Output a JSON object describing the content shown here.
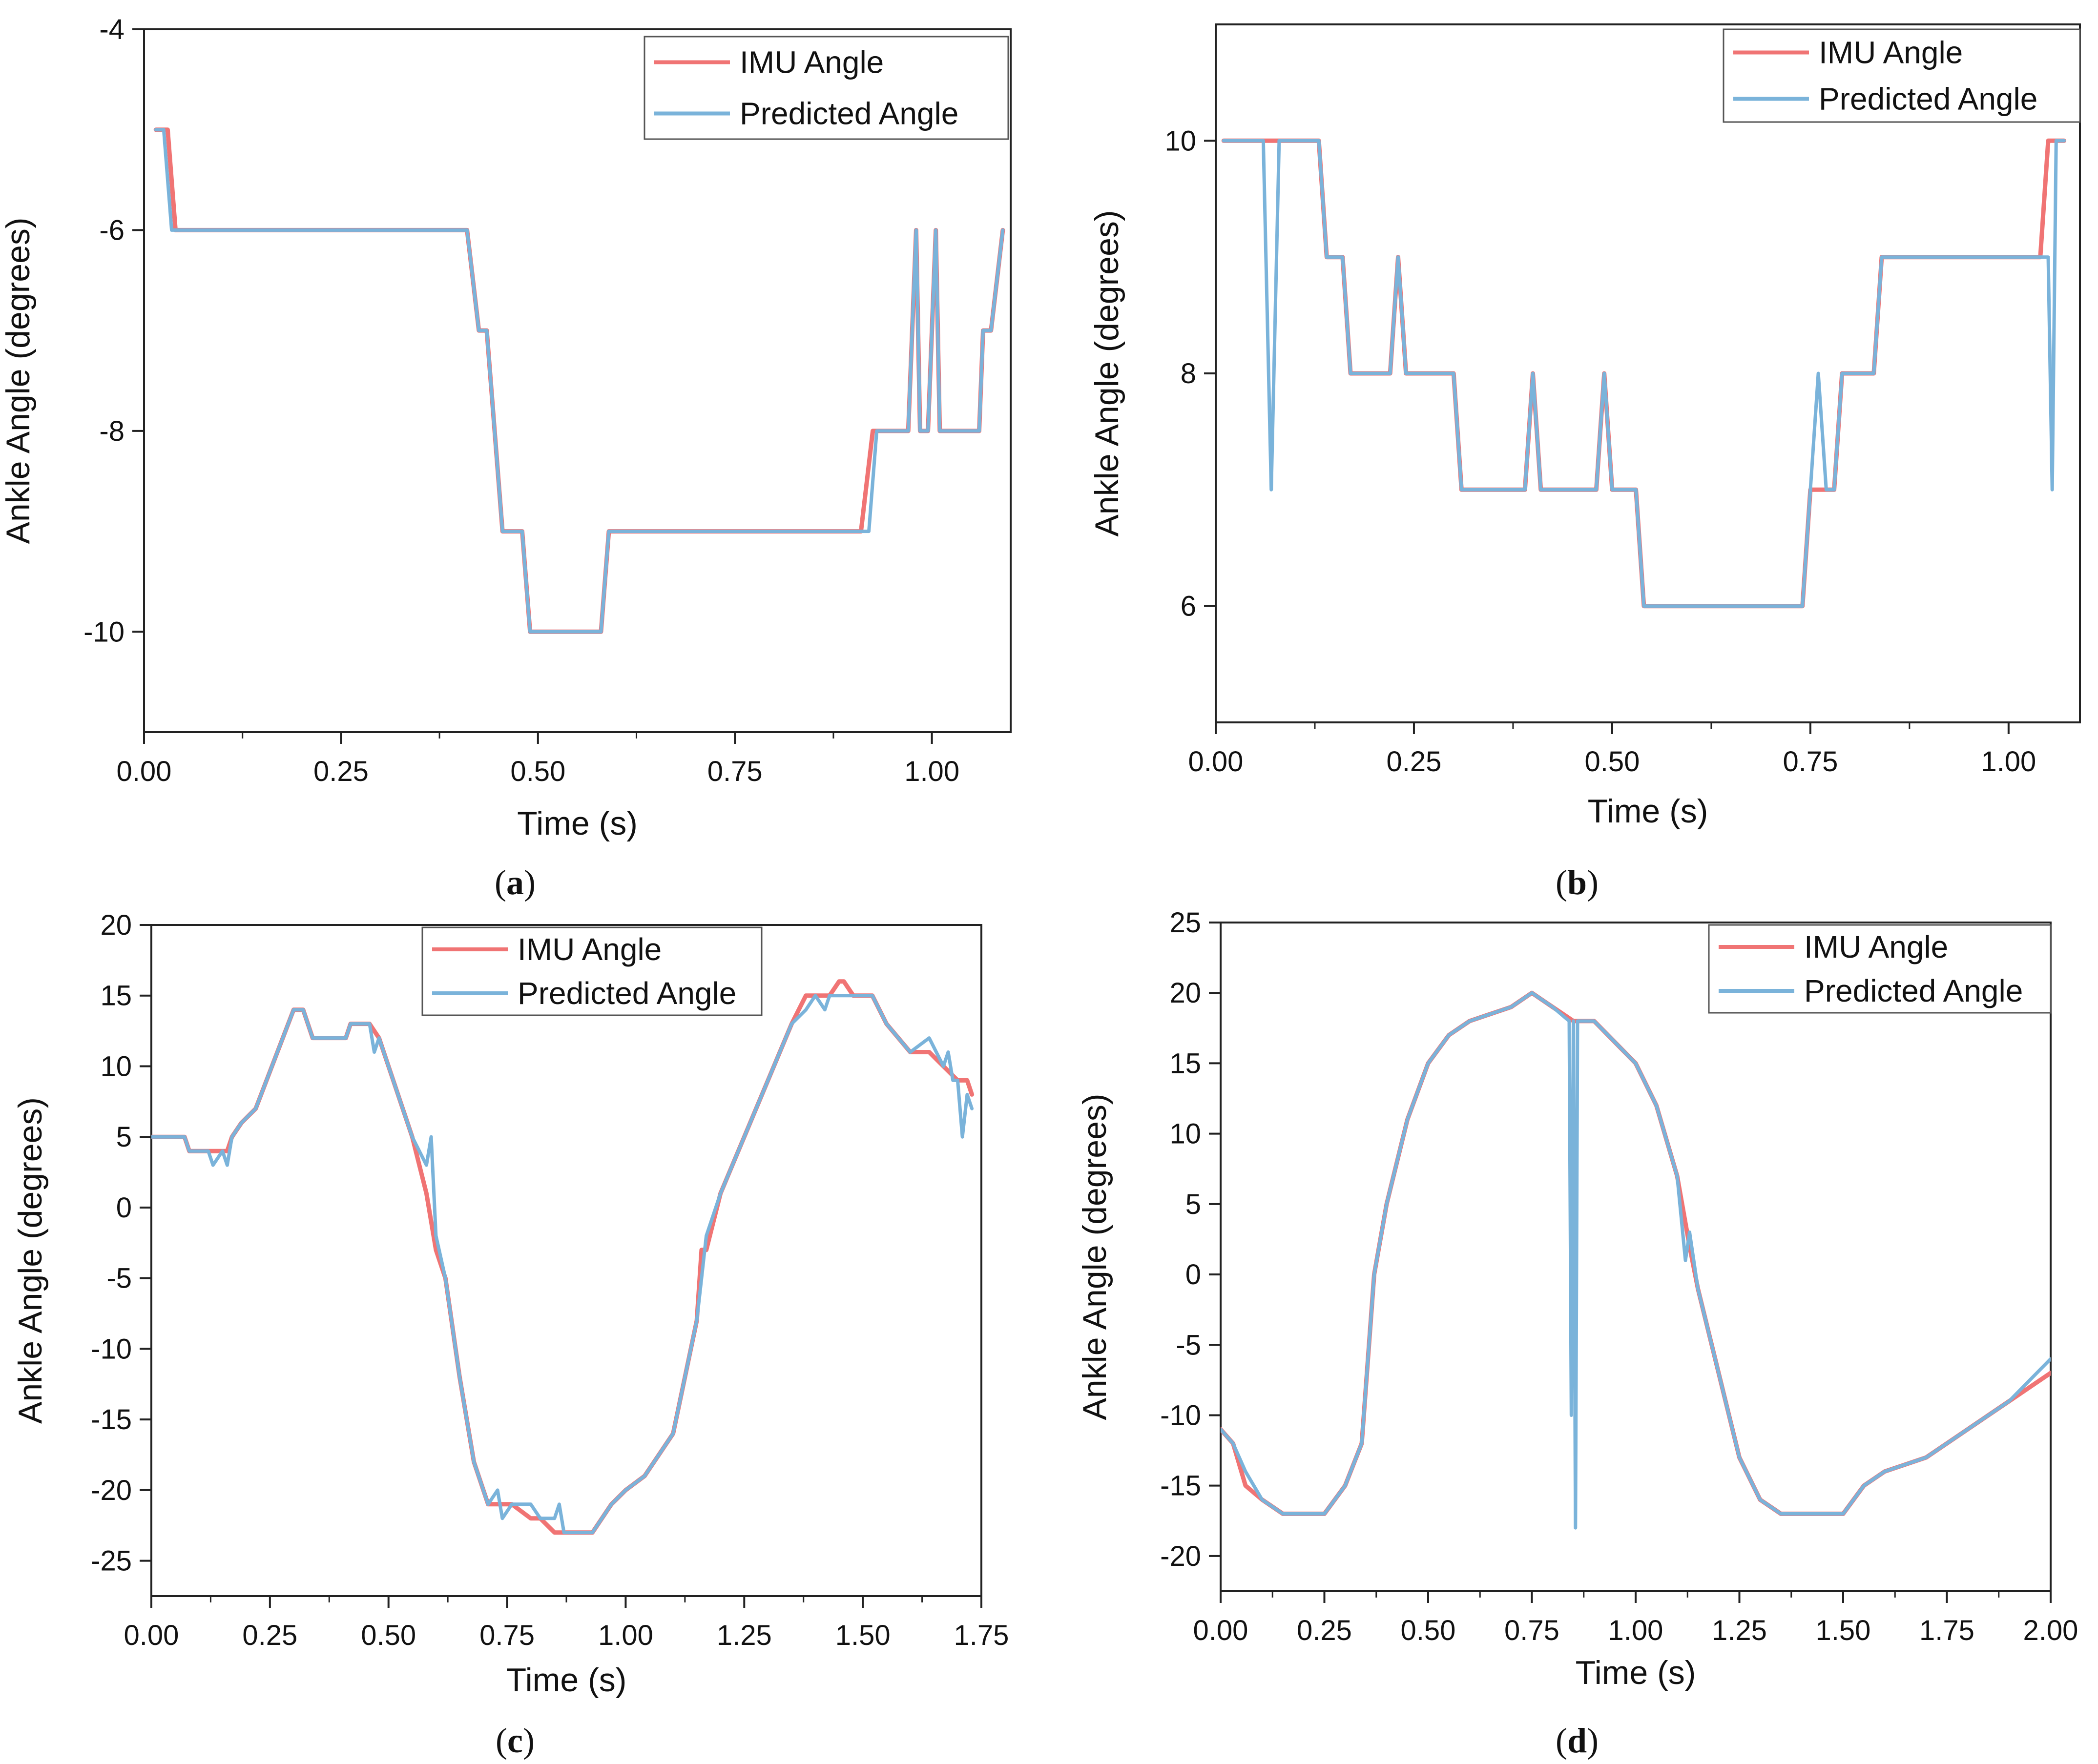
{
  "figure": {
    "legend_labels": [
      "IMU Angle",
      "Predicted Angle"
    ],
    "colors": {
      "imu": "#f07474",
      "predicted": "#7ab3da",
      "axis": "#222222"
    }
  },
  "chart_data": [
    {
      "id": "a",
      "type": "line",
      "caption": "a",
      "xlabel": "Time (s)",
      "ylabel": "Ankle Angle (degrees)",
      "xlim": [
        0,
        1.1
      ],
      "ylim": [
        -11,
        -4
      ],
      "xticks": [
        0,
        0.25,
        0.5,
        0.75,
        1.0
      ],
      "xtick_labels": [
        "0.00",
        "0.25",
        "0.50",
        "0.75",
        "1.00"
      ],
      "yticks": [
        -4,
        -6,
        -8,
        -10
      ],
      "ytick_labels": [
        "-4",
        "-6",
        "-8",
        "-10"
      ],
      "legend_position": "top-right",
      "grid": false,
      "series": [
        {
          "name": "IMU Angle",
          "color": "#f07474",
          "x": [
            0.015,
            0.03,
            0.04,
            0.41,
            0.425,
            0.435,
            0.455,
            0.48,
            0.49,
            0.58,
            0.59,
            0.91,
            0.925,
            0.97,
            0.98,
            0.985,
            0.995,
            1.005,
            1.01,
            1.02,
            1.06,
            1.065,
            1.075,
            1.09
          ],
          "y": [
            -5,
            -5,
            -6,
            -6,
            -7,
            -7,
            -9,
            -9,
            -10,
            -10,
            -9,
            -9,
            -8,
            -8,
            -6,
            -8,
            -8,
            -6,
            -8,
            -8,
            -8,
            -7,
            -7,
            -6
          ]
        },
        {
          "name": "Predicted Angle",
          "color": "#7ab3da",
          "x": [
            0.015,
            0.025,
            0.035,
            0.41,
            0.425,
            0.435,
            0.455,
            0.48,
            0.49,
            0.58,
            0.59,
            0.92,
            0.93,
            0.97,
            0.98,
            0.985,
            0.995,
            1.005,
            1.01,
            1.02,
            1.06,
            1.065,
            1.075,
            1.09
          ],
          "y": [
            -5,
            -5,
            -6,
            -6,
            -7,
            -7,
            -9,
            -9,
            -10,
            -10,
            -9,
            -9,
            -8,
            -8,
            -6,
            -8,
            -8,
            -6,
            -8,
            -8,
            -8,
            -7,
            -7,
            -6
          ]
        }
      ]
    },
    {
      "id": "b",
      "type": "line",
      "caption": "b",
      "xlabel": "Time (s)",
      "ylabel": "Ankle Angle (degrees)",
      "xlim": [
        0,
        1.09
      ],
      "ylim": [
        5,
        11
      ],
      "xticks": [
        0,
        0.25,
        0.5,
        0.75,
        1.0
      ],
      "xtick_labels": [
        "0.00",
        "0.25",
        "0.50",
        "0.75",
        "1.00"
      ],
      "yticks": [
        10,
        8,
        6
      ],
      "ytick_labels": [
        "10",
        "8",
        "6"
      ],
      "legend_position": "top-right",
      "grid": false,
      "series": [
        {
          "name": "IMU Angle",
          "color": "#f07474",
          "x": [
            0.01,
            0.06,
            0.07,
            0.08,
            0.13,
            0.14,
            0.16,
            0.17,
            0.22,
            0.23,
            0.24,
            0.3,
            0.31,
            0.39,
            0.4,
            0.41,
            0.48,
            0.49,
            0.5,
            0.53,
            0.54,
            0.74,
            0.75,
            0.77,
            0.78,
            0.79,
            0.83,
            0.84,
            1.04,
            1.05,
            1.07
          ],
          "y": [
            10,
            10,
            10,
            10,
            10,
            9,
            9,
            8,
            8,
            9,
            8,
            8,
            7,
            7,
            8,
            7,
            7,
            8,
            7,
            7,
            6,
            6,
            7,
            7,
            7,
            8,
            8,
            9,
            9,
            10,
            10
          ]
        },
        {
          "name": "Predicted Angle",
          "color": "#7ab3da",
          "x": [
            0.01,
            0.06,
            0.07,
            0.08,
            0.13,
            0.14,
            0.16,
            0.17,
            0.22,
            0.23,
            0.24,
            0.3,
            0.31,
            0.39,
            0.4,
            0.41,
            0.48,
            0.49,
            0.5,
            0.53,
            0.54,
            0.74,
            0.75,
            0.76,
            0.77,
            0.78,
            0.79,
            0.83,
            0.84,
            1.05,
            1.055,
            1.06,
            1.07
          ],
          "y": [
            10,
            10,
            7,
            10,
            10,
            9,
            9,
            8,
            8,
            9,
            8,
            8,
            7,
            7,
            8,
            7,
            7,
            8,
            7,
            7,
            6,
            6,
            7,
            8,
            7,
            7,
            8,
            8,
            9,
            9,
            7,
            10,
            10
          ]
        }
      ]
    },
    {
      "id": "c",
      "type": "line",
      "caption": "c",
      "xlabel": "Time (s)",
      "ylabel": "Ankle Angle (degrees)",
      "xlim": [
        0,
        1.75
      ],
      "ylim": [
        -27.5,
        20
      ],
      "xticks": [
        0,
        0.25,
        0.5,
        0.75,
        1.0,
        1.25,
        1.5,
        1.75
      ],
      "xtick_labels": [
        "0.00",
        "0.25",
        "0.50",
        "0.75",
        "1.00",
        "1.25",
        "1.50",
        "1.75"
      ],
      "yticks": [
        20,
        15,
        10,
        5,
        0,
        -5,
        -10,
        -15,
        -20,
        -25
      ],
      "ytick_labels": [
        "20",
        "15",
        "10",
        "5",
        "0",
        "-5",
        "-10",
        "-15",
        "-20",
        "-25"
      ],
      "legend_position": "top-center",
      "grid": false,
      "series": [
        {
          "name": "IMU Angle",
          "color": "#f07474",
          "x": [
            0.0,
            0.07,
            0.08,
            0.12,
            0.13,
            0.15,
            0.16,
            0.17,
            0.19,
            0.22,
            0.3,
            0.32,
            0.34,
            0.41,
            0.42,
            0.46,
            0.48,
            0.5,
            0.55,
            0.58,
            0.6,
            0.62,
            0.65,
            0.68,
            0.71,
            0.73,
            0.74,
            0.76,
            0.8,
            0.82,
            0.85,
            0.86,
            0.87,
            0.93,
            0.97,
            1.0,
            1.04,
            1.1,
            1.15,
            1.16,
            1.17,
            1.2,
            1.25,
            1.3,
            1.35,
            1.38,
            1.4,
            1.43,
            1.45,
            1.46,
            1.48,
            1.52,
            1.55,
            1.6,
            1.64,
            1.67,
            1.7,
            1.72,
            1.73
          ],
          "y": [
            5,
            5,
            4,
            4,
            4,
            4,
            4,
            5,
            6,
            7,
            14,
            14,
            12,
            12,
            13,
            13,
            12,
            10,
            5,
            1,
            -3,
            -5,
            -12,
            -18,
            -21,
            -21,
            -21,
            -21,
            -22,
            -22,
            -23,
            -23,
            -23,
            -23,
            -21,
            -20,
            -19,
            -16,
            -8,
            -3,
            -3,
            1,
            5,
            9,
            13,
            15,
            15,
            15,
            16,
            16,
            15,
            15,
            13,
            11,
            11,
            10,
            9,
            9,
            8
          ]
        },
        {
          "name": "Predicted Angle",
          "color": "#7ab3da",
          "x": [
            0.0,
            0.07,
            0.08,
            0.12,
            0.13,
            0.15,
            0.16,
            0.17,
            0.19,
            0.22,
            0.3,
            0.32,
            0.34,
            0.41,
            0.42,
            0.46,
            0.47,
            0.48,
            0.5,
            0.55,
            0.58,
            0.59,
            0.6,
            0.62,
            0.65,
            0.68,
            0.71,
            0.73,
            0.74,
            0.76,
            0.8,
            0.82,
            0.85,
            0.86,
            0.87,
            0.93,
            0.97,
            1.0,
            1.04,
            1.1,
            1.15,
            1.16,
            1.17,
            1.2,
            1.25,
            1.3,
            1.35,
            1.38,
            1.4,
            1.42,
            1.43,
            1.45,
            1.46,
            1.48,
            1.52,
            1.55,
            1.6,
            1.64,
            1.67,
            1.68,
            1.69,
            1.7,
            1.71,
            1.72,
            1.73
          ],
          "y": [
            5,
            5,
            4,
            4,
            3,
            4,
            3,
            5,
            6,
            7,
            14,
            14,
            12,
            12,
            13,
            13,
            11,
            12,
            10,
            5,
            3,
            5,
            -2,
            -5,
            -12,
            -18,
            -21,
            -20,
            -22,
            -21,
            -21,
            -22,
            -22,
            -21,
            -23,
            -23,
            -21,
            -20,
            -19,
            -16,
            -8,
            -5,
            -2,
            1,
            5,
            9,
            13,
            14,
            15,
            14,
            15,
            15,
            15,
            15,
            15,
            13,
            11,
            12,
            10,
            11,
            9,
            9,
            5,
            8,
            7
          ]
        }
      ]
    },
    {
      "id": "d",
      "type": "line",
      "caption": "d",
      "xlabel": "Time (s)",
      "ylabel": "Ankle Angle (degrees)",
      "xlim": [
        0,
        2.0
      ],
      "ylim": [
        -22.5,
        25
      ],
      "xticks": [
        0,
        0.25,
        0.5,
        0.75,
        1.0,
        1.25,
        1.5,
        1.75,
        2.0
      ],
      "xtick_labels": [
        "0.00",
        "0.25",
        "0.50",
        "0.75",
        "1.00",
        "1.25",
        "1.50",
        "1.75",
        "2.00"
      ],
      "yticks": [
        25,
        20,
        15,
        10,
        5,
        0,
        -5,
        -10,
        -15,
        -20
      ],
      "ytick_labels": [
        "25",
        "20",
        "15",
        "10",
        "5",
        "0",
        "-5",
        "-10",
        "-15",
        "-20"
      ],
      "legend_position": "top-right",
      "grid": false,
      "series": [
        {
          "name": "IMU Angle",
          "color": "#f07474",
          "x": [
            0.0,
            0.03,
            0.06,
            0.1,
            0.15,
            0.25,
            0.3,
            0.34,
            0.37,
            0.4,
            0.45,
            0.5,
            0.55,
            0.6,
            0.7,
            0.75,
            0.8,
            0.85,
            0.9,
            1.0,
            1.05,
            1.1,
            1.13,
            1.15,
            1.2,
            1.25,
            1.3,
            1.35,
            1.5,
            1.55,
            1.6,
            1.7,
            1.8,
            1.9,
            2.0
          ],
          "y": [
            -11,
            -12,
            -15,
            -16,
            -17,
            -17,
            -15,
            -12,
            0,
            5,
            11,
            15,
            17,
            18,
            19,
            20,
            19,
            18,
            18,
            15,
            12,
            7,
            2,
            -1,
            -7,
            -13,
            -16,
            -17,
            -17,
            -15,
            -14,
            -13,
            -11,
            -9,
            -7
          ]
        },
        {
          "name": "Predicted Angle",
          "color": "#7ab3da",
          "x": [
            0.0,
            0.03,
            0.06,
            0.1,
            0.15,
            0.25,
            0.3,
            0.34,
            0.37,
            0.4,
            0.45,
            0.5,
            0.55,
            0.6,
            0.7,
            0.75,
            0.8,
            0.84,
            0.845,
            0.85,
            0.855,
            0.86,
            0.9,
            1.0,
            1.05,
            1.1,
            1.12,
            1.13,
            1.15,
            1.2,
            1.25,
            1.3,
            1.35,
            1.5,
            1.55,
            1.6,
            1.7,
            1.8,
            1.9,
            2.0
          ],
          "y": [
            -11,
            -12,
            -14,
            -16,
            -17,
            -17,
            -15,
            -12,
            0,
            5,
            11,
            15,
            17,
            18,
            19,
            20,
            19,
            18,
            -10,
            18,
            -18,
            18,
            18,
            15,
            12,
            7,
            1,
            3,
            -1,
            -7,
            -13,
            -16,
            -17,
            -17,
            -15,
            -14,
            -13,
            -11,
            -9,
            -6
          ]
        }
      ]
    }
  ]
}
